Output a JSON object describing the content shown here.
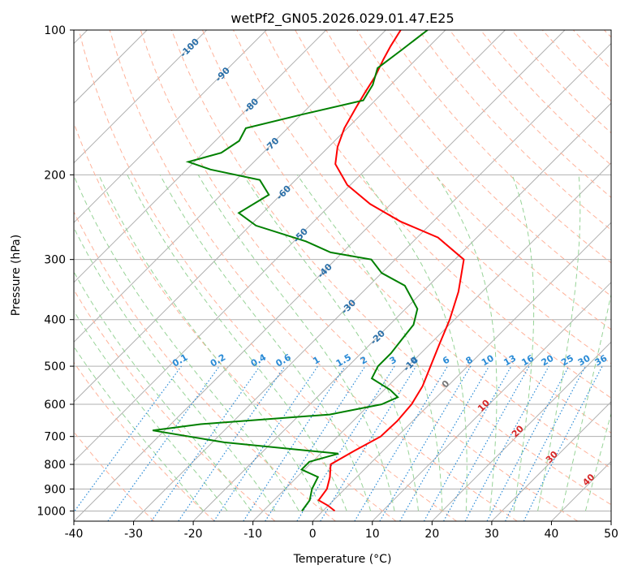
{
  "chart_data": {
    "type": "line",
    "title": "wetPf2_GN05.2026.029.01.47.E25",
    "xlabel": "Temperature (°C)",
    "ylabel": "Pressure (hPa)",
    "xlim": [
      -40,
      50
    ],
    "ylim": [
      1050,
      100
    ],
    "y_scale": "log",
    "skew": "skew-T log-p",
    "grid": true,
    "x_ticks": [
      -40,
      -30,
      -20,
      -10,
      0,
      10,
      20,
      30,
      40,
      50
    ],
    "y_ticks": [
      100,
      200,
      300,
      400,
      500,
      600,
      700,
      800,
      900,
      1000
    ],
    "series": [
      {
        "role": "temperature",
        "color": "#ff0000",
        "points": [
          [
            2.0,
            1000
          ],
          [
            0.0,
            975
          ],
          [
            -2.5,
            950
          ],
          [
            -3.0,
            900
          ],
          [
            -4.5,
            850
          ],
          [
            -6.5,
            800
          ],
          [
            -4.8,
            750
          ],
          [
            -2.8,
            700
          ],
          [
            -2.6,
            650
          ],
          [
            -3.0,
            600
          ],
          [
            -4.2,
            550
          ],
          [
            -6.2,
            500
          ],
          [
            -8.4,
            450
          ],
          [
            -10.8,
            400
          ],
          [
            -14.0,
            350
          ],
          [
            -18.5,
            300
          ],
          [
            -26.5,
            270
          ],
          [
            -35.5,
            250
          ],
          [
            -43.5,
            230
          ],
          [
            -50.5,
            210
          ],
          [
            -56.0,
            190
          ],
          [
            -58.5,
            175
          ],
          [
            -60.5,
            160
          ],
          [
            -62.0,
            145
          ],
          [
            -63.0,
            135
          ],
          [
            -64.0,
            125
          ],
          [
            -65.5,
            115
          ],
          [
            -66.5,
            108
          ],
          [
            -67.5,
            100
          ]
        ]
      },
      {
        "role": "dewpoint",
        "color": "#008000",
        "points": [
          [
            -3.5,
            1000
          ],
          [
            -4.0,
            950
          ],
          [
            -5.5,
            900
          ],
          [
            -6.5,
            850
          ],
          [
            -10.5,
            820
          ],
          [
            -10.5,
            790
          ],
          [
            -7.0,
            760
          ],
          [
            -28.0,
            720
          ],
          [
            -42.0,
            680
          ],
          [
            -35.0,
            660
          ],
          [
            -15.0,
            630
          ],
          [
            -8.0,
            600
          ],
          [
            -6.5,
            580
          ],
          [
            -9.0,
            560
          ],
          [
            -14.0,
            530
          ],
          [
            -15.0,
            500
          ],
          [
            -15.0,
            470
          ],
          [
            -15.5,
            440
          ],
          [
            -16.0,
            410
          ],
          [
            -18.0,
            380
          ],
          [
            -24.0,
            340
          ],
          [
            -30.0,
            320
          ],
          [
            -34.0,
            300
          ],
          [
            -42.0,
            290
          ],
          [
            -48.0,
            275
          ],
          [
            -59.0,
            255
          ],
          [
            -64.0,
            240
          ],
          [
            -62.0,
            220
          ],
          [
            -66.0,
            205
          ],
          [
            -76.0,
            195
          ],
          [
            -81.0,
            188
          ],
          [
            -77.0,
            180
          ],
          [
            -76.0,
            170
          ],
          [
            -77.0,
            160
          ],
          [
            -70.0,
            150
          ],
          [
            -62.0,
            140
          ],
          [
            -63.0,
            130
          ],
          [
            -65.0,
            120
          ],
          [
            -64.0,
            110
          ],
          [
            -63.0,
            100
          ]
        ]
      }
    ],
    "isotherms_diagonal": [
      -100,
      -90,
      -80,
      -70,
      -60,
      -50,
      -40,
      -30,
      -20,
      -10,
      0,
      10,
      20,
      30,
      40,
      50
    ],
    "dry_adiabats_color": "#ffb29a",
    "moist_adiabats_color": "#97d397",
    "mixing_ratio_color": "#2a8bd6",
    "isotherm_color": "#b0b0b0",
    "isotherm_labels": {
      "cold": [
        "-100",
        "-90",
        "-80",
        "-70",
        "-60",
        "-50",
        "-40",
        "-30",
        "-20",
        "-10"
      ],
      "cold_color": "#2a6fa8",
      "zero": "0",
      "zero_color": "#777777",
      "warm": [
        "10",
        "20",
        "30",
        "40"
      ],
      "warm_color": "#d62728"
    },
    "mixing_ratio_labels": [
      "0.1",
      "0.2",
      "0.4",
      "0.6",
      "1",
      "1.5",
      "2",
      "3",
      "4",
      "6",
      "8",
      "10",
      "13",
      "16",
      "20",
      "25",
      "30",
      "36"
    ],
    "mixing_ratio_values": [
      0.1,
      0.2,
      0.4,
      0.6,
      1,
      1.5,
      2,
      3,
      4,
      6,
      8,
      10,
      13,
      16,
      20,
      25,
      30,
      36
    ]
  }
}
